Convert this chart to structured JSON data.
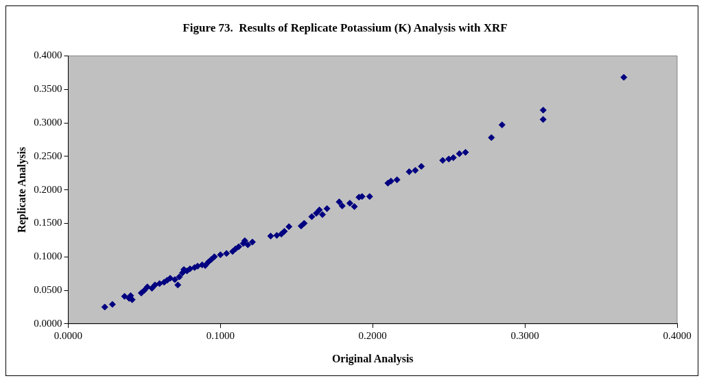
{
  "chart_data": {
    "type": "scatter",
    "title": "Figure 73.  Results of Replicate Potassium (K) Analysis with XRF",
    "xlabel": "Original Analysis",
    "ylabel": "Replicate Analysis",
    "xlim": [
      0,
      0.4
    ],
    "ylim": [
      0,
      0.4
    ],
    "xticks": [
      {
        "value": 0,
        "label": "0.0000"
      },
      {
        "value": 0.1,
        "label": "0.1000"
      },
      {
        "value": 0.2,
        "label": "0.2000"
      },
      {
        "value": 0.3,
        "label": "0.3000"
      },
      {
        "value": 0.4,
        "label": "0.4000"
      }
    ],
    "yticks": [
      {
        "value": 0,
        "label": "0.0000"
      },
      {
        "value": 0.05,
        "label": "0.0500"
      },
      {
        "value": 0.1,
        "label": "0.1000"
      },
      {
        "value": 0.15,
        "label": "0.1500"
      },
      {
        "value": 0.2,
        "label": "0.2000"
      },
      {
        "value": 0.25,
        "label": "0.2500"
      },
      {
        "value": 0.3,
        "label": "0.3000"
      },
      {
        "value": 0.35,
        "label": "0.3500"
      },
      {
        "value": 0.4,
        "label": "0.4000"
      }
    ],
    "grid": false,
    "legend": false,
    "marker": "diamond",
    "series": [
      {
        "color": "#000080",
        "x": [
          0.024,
          0.029,
          0.037,
          0.04,
          0.042,
          0.041,
          0.048,
          0.05,
          0.052,
          0.055,
          0.057,
          0.06,
          0.063,
          0.065,
          0.067,
          0.07,
          0.072,
          0.073,
          0.075,
          0.076,
          0.078,
          0.08,
          0.083,
          0.085,
          0.088,
          0.09,
          0.092,
          0.094,
          0.096,
          0.1,
          0.104,
          0.108,
          0.11,
          0.112,
          0.115,
          0.116,
          0.118,
          0.121,
          0.133,
          0.137,
          0.14,
          0.142,
          0.145,
          0.153,
          0.155,
          0.16,
          0.163,
          0.165,
          0.167,
          0.17,
          0.178,
          0.18,
          0.185,
          0.188,
          0.191,
          0.193,
          0.198,
          0.21,
          0.212,
          0.216,
          0.224,
          0.228,
          0.232,
          0.246,
          0.25,
          0.253,
          0.257,
          0.261,
          0.278,
          0.285,
          0.312,
          0.312,
          0.365
        ],
        "values": [
          0.025,
          0.029,
          0.041,
          0.038,
          0.036,
          0.042,
          0.046,
          0.05,
          0.055,
          0.053,
          0.058,
          0.06,
          0.062,
          0.065,
          0.068,
          0.066,
          0.058,
          0.07,
          0.076,
          0.081,
          0.079,
          0.082,
          0.084,
          0.086,
          0.088,
          0.087,
          0.092,
          0.096,
          0.1,
          0.103,
          0.105,
          0.108,
          0.112,
          0.115,
          0.12,
          0.124,
          0.118,
          0.122,
          0.131,
          0.132,
          0.134,
          0.138,
          0.145,
          0.146,
          0.15,
          0.16,
          0.165,
          0.17,
          0.163,
          0.172,
          0.182,
          0.176,
          0.18,
          0.175,
          0.189,
          0.19,
          0.19,
          0.21,
          0.213,
          0.215,
          0.227,
          0.229,
          0.235,
          0.244,
          0.246,
          0.248,
          0.254,
          0.256,
          0.278,
          0.297,
          0.305,
          0.319,
          0.368
        ]
      }
    ]
  }
}
